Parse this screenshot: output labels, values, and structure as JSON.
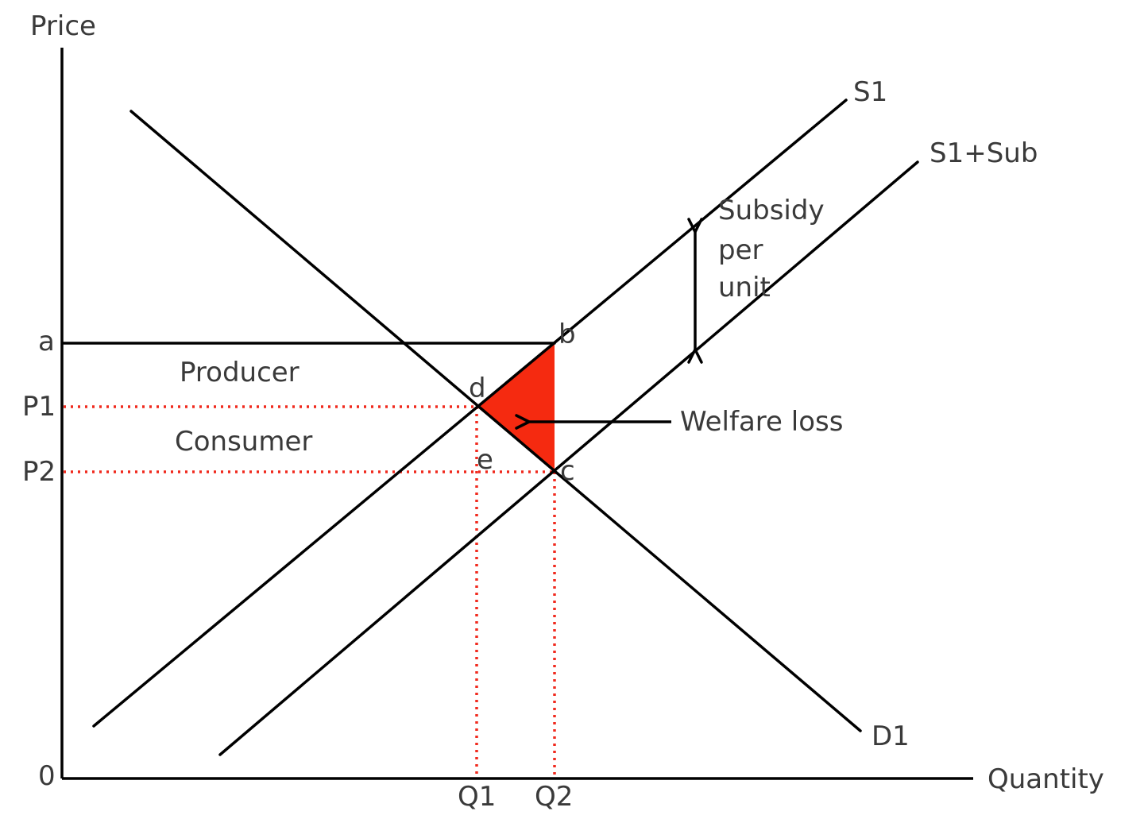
{
  "axes": {
    "y_label": "Price",
    "x_label": "Quantity",
    "origin": "0"
  },
  "price_labels": {
    "a": "a",
    "p1": "P1",
    "p2": "P2"
  },
  "quantity_labels": {
    "q1": "Q1",
    "q2": "Q2"
  },
  "curves": {
    "s1": "S1",
    "s1_sub": "S1+Sub",
    "d1": "D1"
  },
  "points": {
    "b": "b",
    "c": "c",
    "d": "d",
    "e": "e"
  },
  "regions": {
    "producer": "Producer",
    "consumer": "Consumer"
  },
  "annotations": {
    "subsidy_line1": "Subsidy",
    "subsidy_line2": "per",
    "subsidy_line3": "unit",
    "welfare_loss": "Welfare loss"
  },
  "colors": {
    "welfare_loss_fill": "#f52a10",
    "guide_lines": "#f02a1e"
  }
}
